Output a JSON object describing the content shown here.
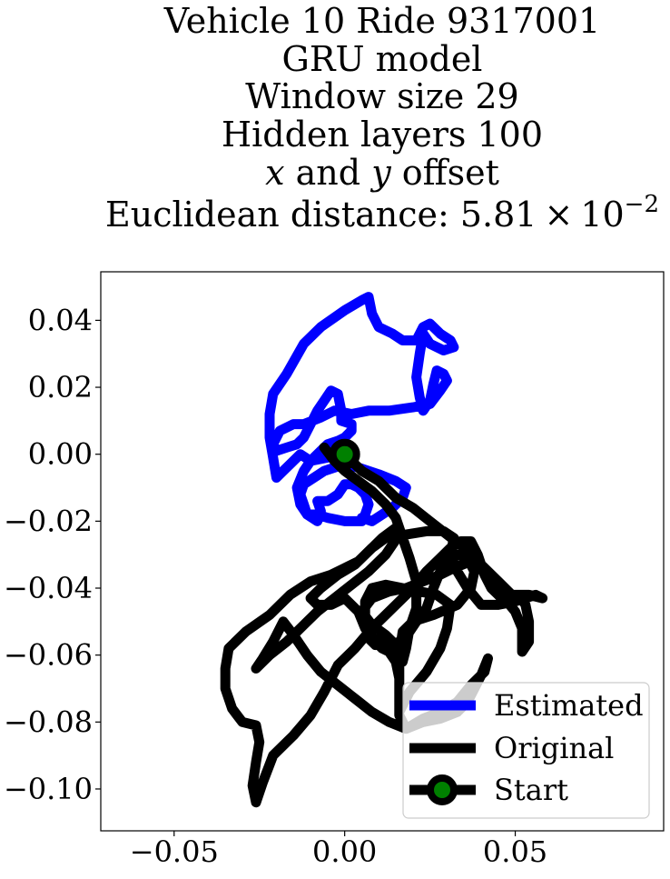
{
  "chart_data": {
    "type": "line",
    "title_lines": [
      "Vehicle 10 Ride 9317001",
      "GRU model",
      "Window size 29",
      "Hidden layers 100"
    ],
    "title_offset": {
      "x_var": "x",
      "and_text": " and ",
      "y_var": "y",
      "tail_text": " offset"
    },
    "title_distance": {
      "prefix": "Euclidean distance: 5.81",
      "times": "×",
      "base": "10",
      "exponent": "−2"
    },
    "xlabel": "",
    "ylabel": "",
    "xlim": [
      -0.0715,
      0.0935
    ],
    "ylim": [
      -0.1125,
      0.0545
    ],
    "xticks": [
      {
        "value": -0.05,
        "label": "−0.05"
      },
      {
        "value": 0.0,
        "label": "0.00"
      },
      {
        "value": 0.05,
        "label": "0.05"
      }
    ],
    "yticks": [
      {
        "value": 0.04,
        "label": "0.04"
      },
      {
        "value": 0.02,
        "label": "0.02"
      },
      {
        "value": 0.0,
        "label": "0.00"
      },
      {
        "value": -0.02,
        "label": "−0.02"
      },
      {
        "value": -0.04,
        "label": "−0.04"
      },
      {
        "value": -0.06,
        "label": "−0.06"
      },
      {
        "value": -0.08,
        "label": "−0.08"
      },
      {
        "value": -0.1,
        "label": "−0.10"
      }
    ],
    "grid": false,
    "legend_position": "lower-right",
    "series": [
      {
        "name": "Estimated",
        "color": "#0000ff",
        "points": [
          [
            0.0,
            0.0
          ],
          [
            -0.005,
            -0.001
          ],
          [
            -0.01,
            -0.002
          ],
          [
            -0.013,
            0.0
          ],
          [
            -0.018,
            -0.005
          ],
          [
            -0.02,
            -0.007
          ],
          [
            -0.021,
            -0.001
          ],
          [
            -0.022,
            0.005
          ],
          [
            -0.022,
            0.012
          ],
          [
            -0.021,
            0.018
          ],
          [
            -0.017,
            0.024
          ],
          [
            -0.012,
            0.033
          ],
          [
            -0.007,
            0.038
          ],
          [
            0.0,
            0.043
          ],
          [
            0.005,
            0.046
          ],
          [
            0.007,
            0.047
          ],
          [
            0.008,
            0.042
          ],
          [
            0.01,
            0.038
          ],
          [
            0.014,
            0.036
          ],
          [
            0.017,
            0.034
          ],
          [
            0.021,
            0.034
          ],
          [
            0.023,
            0.038
          ],
          [
            0.025,
            0.039
          ],
          [
            0.028,
            0.036
          ],
          [
            0.031,
            0.034
          ],
          [
            0.032,
            0.032
          ],
          [
            0.029,
            0.031
          ],
          [
            0.025,
            0.033
          ],
          [
            0.023,
            0.036
          ],
          [
            0.022,
            0.03
          ],
          [
            0.021,
            0.023
          ],
          [
            0.022,
            0.017
          ],
          [
            0.023,
            0.013
          ],
          [
            0.025,
            0.016
          ],
          [
            0.026,
            0.021
          ],
          [
            0.027,
            0.025
          ],
          [
            0.029,
            0.024
          ],
          [
            0.03,
            0.022
          ],
          [
            0.028,
            0.019
          ],
          [
            0.025,
            0.015
          ],
          [
            0.02,
            0.014
          ],
          [
            0.013,
            0.013
          ],
          [
            0.007,
            0.013
          ],
          [
            0.002,
            0.012
          ],
          [
            -0.003,
            0.013
          ],
          [
            -0.007,
            0.011
          ],
          [
            -0.012,
            0.009
          ],
          [
            -0.015,
            0.009
          ],
          [
            -0.019,
            0.007
          ],
          [
            -0.021,
            0.003
          ],
          [
            -0.02,
            0.001
          ],
          [
            -0.017,
            0.002
          ],
          [
            -0.014,
            0.003
          ],
          [
            -0.012,
            0.005
          ],
          [
            -0.01,
            0.009
          ],
          [
            -0.008,
            0.013
          ],
          [
            -0.006,
            0.016
          ],
          [
            -0.004,
            0.019
          ],
          [
            -0.002,
            0.018
          ],
          [
            -0.001,
            0.013
          ],
          [
            -0.001,
            0.01
          ],
          [
            0.002,
            0.009
          ],
          [
            0.002,
            0.007
          ],
          [
            0.0,
            0.005
          ],
          [
            -0.002,
            0.004
          ],
          [
            -0.005,
            0.003
          ],
          [
            -0.007,
            0.001
          ],
          [
            -0.01,
            -0.002
          ],
          [
            -0.012,
            -0.005
          ],
          [
            -0.014,
            -0.01
          ],
          [
            -0.013,
            -0.015
          ],
          [
            -0.011,
            -0.018
          ],
          [
            -0.008,
            -0.02
          ],
          [
            -0.007,
            -0.017
          ],
          [
            -0.008,
            -0.014
          ],
          [
            -0.005,
            -0.014
          ],
          [
            -0.002,
            -0.012
          ],
          [
            0.0,
            -0.009
          ],
          [
            0.002,
            -0.009
          ],
          [
            0.004,
            -0.01
          ],
          [
            0.006,
            -0.012
          ],
          [
            0.007,
            -0.015
          ],
          [
            0.006,
            -0.018
          ],
          [
            0.005,
            -0.02
          ],
          [
            0.0,
            -0.02
          ],
          [
            -0.005,
            -0.019
          ],
          [
            -0.008,
            -0.018
          ],
          [
            -0.011,
            -0.018
          ],
          [
            -0.012,
            -0.015
          ],
          [
            -0.013,
            -0.012
          ],
          [
            -0.012,
            -0.009
          ],
          [
            -0.009,
            -0.007
          ],
          [
            -0.006,
            -0.005
          ],
          [
            -0.003,
            -0.004
          ],
          [
            0.0,
            -0.003
          ],
          [
            0.004,
            -0.004
          ],
          [
            0.01,
            -0.006
          ],
          [
            0.015,
            -0.008
          ],
          [
            0.018,
            -0.01
          ],
          [
            0.017,
            -0.013
          ],
          [
            0.014,
            -0.016
          ],
          [
            0.011,
            -0.018
          ],
          [
            0.008,
            -0.02
          ],
          [
            0.005,
            -0.019
          ]
        ]
      },
      {
        "name": "Original",
        "color": "#000000",
        "points": [
          [
            0.0,
            0.0
          ],
          [
            0.005,
            -0.005
          ],
          [
            0.01,
            -0.008
          ],
          [
            0.015,
            -0.013
          ],
          [
            0.02,
            -0.016
          ],
          [
            0.025,
            -0.02
          ],
          [
            0.03,
            -0.024
          ],
          [
            0.035,
            -0.028
          ],
          [
            0.04,
            -0.033
          ],
          [
            0.045,
            -0.038
          ],
          [
            0.049,
            -0.042
          ],
          [
            0.054,
            -0.042
          ],
          [
            0.058,
            -0.043
          ],
          [
            0.056,
            -0.042
          ],
          [
            0.05,
            -0.044
          ],
          [
            0.045,
            -0.045
          ],
          [
            0.04,
            -0.045
          ],
          [
            0.036,
            -0.04
          ],
          [
            0.033,
            -0.035
          ],
          [
            0.031,
            -0.03
          ],
          [
            0.032,
            -0.025
          ],
          [
            0.029,
            -0.023
          ],
          [
            0.024,
            -0.023
          ],
          [
            0.018,
            -0.024
          ],
          [
            0.012,
            -0.025
          ],
          [
            0.008,
            -0.028
          ],
          [
            0.004,
            -0.032
          ],
          [
            0.0,
            -0.034
          ],
          [
            -0.004,
            -0.036
          ],
          [
            -0.01,
            -0.038
          ],
          [
            -0.016,
            -0.042
          ],
          [
            -0.022,
            -0.048
          ],
          [
            -0.029,
            -0.053
          ],
          [
            -0.034,
            -0.058
          ],
          [
            -0.035,
            -0.064
          ],
          [
            -0.035,
            -0.07
          ],
          [
            -0.033,
            -0.076
          ],
          [
            -0.03,
            -0.08
          ],
          [
            -0.026,
            -0.081
          ],
          [
            -0.025,
            -0.086
          ],
          [
            -0.026,
            -0.092
          ],
          [
            -0.027,
            -0.099
          ],
          [
            -0.026,
            -0.104
          ],
          [
            -0.024,
            -0.098
          ],
          [
            -0.021,
            -0.09
          ],
          [
            -0.015,
            -0.084
          ],
          [
            -0.01,
            -0.078
          ],
          [
            -0.006,
            -0.071
          ],
          [
            -0.002,
            -0.063
          ],
          [
            0.003,
            -0.058
          ],
          [
            0.008,
            -0.052
          ],
          [
            0.013,
            -0.047
          ],
          [
            0.019,
            -0.041
          ],
          [
            0.024,
            -0.035
          ],
          [
            0.028,
            -0.031
          ],
          [
            0.031,
            -0.028
          ],
          [
            0.034,
            -0.026
          ],
          [
            0.037,
            -0.026
          ],
          [
            0.039,
            -0.03
          ],
          [
            0.041,
            -0.036
          ],
          [
            0.043,
            -0.04
          ],
          [
            0.047,
            -0.044
          ],
          [
            0.051,
            -0.042
          ],
          [
            0.053,
            -0.045
          ],
          [
            0.054,
            -0.05
          ],
          [
            0.054,
            -0.056
          ],
          [
            0.052,
            -0.059
          ],
          [
            0.052,
            -0.052
          ],
          [
            0.05,
            -0.047
          ],
          [
            0.046,
            -0.042
          ],
          [
            0.044,
            -0.038
          ],
          [
            0.041,
            -0.034
          ],
          [
            0.037,
            -0.032
          ],
          [
            0.032,
            -0.034
          ],
          [
            0.028,
            -0.036
          ],
          [
            0.023,
            -0.038
          ],
          [
            0.018,
            -0.04
          ],
          [
            0.013,
            -0.041
          ],
          [
            0.008,
            -0.043
          ],
          [
            0.005,
            -0.047
          ],
          [
            0.008,
            -0.051
          ],
          [
            0.012,
            -0.054
          ],
          [
            0.015,
            -0.057
          ],
          [
            0.017,
            -0.055
          ],
          [
            0.019,
            -0.053
          ],
          [
            0.021,
            -0.05
          ],
          [
            0.024,
            -0.046
          ],
          [
            0.026,
            -0.04
          ],
          [
            0.028,
            -0.035
          ],
          [
            0.03,
            -0.031
          ],
          [
            0.033,
            -0.03
          ],
          [
            0.036,
            -0.031
          ],
          [
            0.038,
            -0.035
          ],
          [
            0.037,
            -0.04
          ],
          [
            0.033,
            -0.045
          ],
          [
            0.026,
            -0.048
          ],
          [
            0.02,
            -0.05
          ],
          [
            0.017,
            -0.053
          ],
          [
            0.016,
            -0.06
          ],
          [
            0.016,
            -0.067
          ],
          [
            0.016,
            -0.074
          ],
          [
            0.016,
            -0.078
          ],
          [
            0.018,
            -0.082
          ],
          [
            0.023,
            -0.08
          ],
          [
            0.028,
            -0.079
          ],
          [
            0.033,
            -0.077
          ],
          [
            0.036,
            -0.074
          ],
          [
            0.038,
            -0.07
          ],
          [
            0.04,
            -0.066
          ],
          [
            0.042,
            -0.061
          ],
          [
            0.041,
            -0.065
          ],
          [
            0.037,
            -0.069
          ],
          [
            0.033,
            -0.074
          ],
          [
            0.028,
            -0.077
          ],
          [
            0.023,
            -0.079
          ],
          [
            0.018,
            -0.082
          ],
          [
            0.013,
            -0.08
          ],
          [
            0.008,
            -0.077
          ],
          [
            0.003,
            -0.073
          ],
          [
            -0.002,
            -0.069
          ],
          [
            -0.007,
            -0.065
          ],
          [
            -0.011,
            -0.06
          ],
          [
            -0.015,
            -0.054
          ],
          [
            -0.018,
            -0.05
          ],
          [
            -0.021,
            -0.056
          ],
          [
            -0.024,
            -0.061
          ],
          [
            -0.026,
            -0.064
          ],
          [
            -0.022,
            -0.06
          ],
          [
            -0.017,
            -0.056
          ],
          [
            -0.012,
            -0.051
          ],
          [
            -0.008,
            -0.047
          ],
          [
            -0.003,
            -0.043
          ],
          [
            0.002,
            -0.039
          ],
          [
            0.007,
            -0.035
          ],
          [
            0.012,
            -0.03
          ],
          [
            0.016,
            -0.024
          ],
          [
            0.015,
            -0.022
          ],
          [
            0.011,
            -0.025
          ],
          [
            0.007,
            -0.029
          ],
          [
            0.003,
            -0.033
          ],
          [
            -0.002,
            -0.036
          ],
          [
            -0.007,
            -0.04
          ],
          [
            -0.01,
            -0.043
          ],
          [
            -0.008,
            -0.045
          ],
          [
            -0.004,
            -0.045
          ],
          [
            0.0,
            -0.043
          ],
          [
            0.004,
            -0.047
          ],
          [
            0.006,
            -0.052
          ],
          [
            0.009,
            -0.056
          ],
          [
            0.011,
            -0.058
          ],
          [
            0.013,
            -0.059
          ],
          [
            0.015,
            -0.062
          ],
          [
            0.016,
            -0.067
          ],
          [
            0.016,
            -0.072
          ],
          [
            0.016,
            -0.077
          ],
          [
            0.019,
            -0.071
          ],
          [
            0.024,
            -0.065
          ],
          [
            0.028,
            -0.058
          ],
          [
            0.03,
            -0.052
          ],
          [
            0.031,
            -0.045
          ],
          [
            0.027,
            -0.042
          ],
          [
            0.022,
            -0.041
          ],
          [
            0.017,
            -0.04
          ],
          [
            0.012,
            -0.039
          ],
          [
            0.008,
            -0.04
          ],
          [
            0.006,
            -0.044
          ],
          [
            0.006,
            -0.05
          ],
          [
            0.007,
            -0.055
          ],
          [
            0.009,
            -0.057
          ],
          [
            0.01,
            -0.055
          ],
          [
            0.012,
            -0.057
          ],
          [
            0.015,
            -0.06
          ],
          [
            0.017,
            -0.062
          ],
          [
            0.018,
            -0.058
          ],
          [
            0.019,
            -0.052
          ],
          [
            0.021,
            -0.046
          ],
          [
            0.021,
            -0.038
          ],
          [
            0.019,
            -0.031
          ],
          [
            0.017,
            -0.025
          ],
          [
            0.015,
            -0.019
          ],
          [
            0.012,
            -0.015
          ],
          [
            0.008,
            -0.011
          ],
          [
            0.004,
            -0.008
          ],
          [
            0.0,
            -0.005
          ],
          [
            -0.003,
            -0.002
          ],
          [
            -0.006,
            0.002
          ]
        ]
      }
    ],
    "start": {
      "name": "Start",
      "x": 0.0,
      "y": 0.0,
      "line_color": "#000000",
      "marker_face": "#008000",
      "marker_edge": "#000000"
    }
  }
}
